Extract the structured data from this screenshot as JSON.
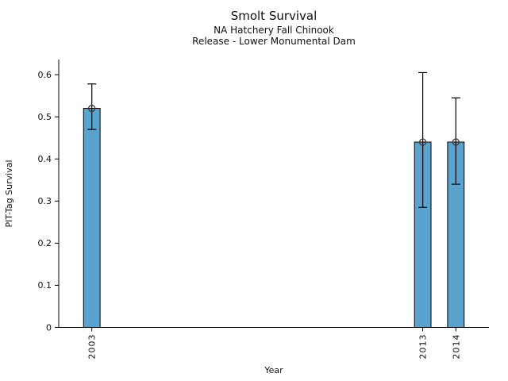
{
  "chart_data": {
    "type": "bar",
    "title": "Smolt Survival",
    "subtitle1": "NA Hatchery Fall Chinook",
    "subtitle2": "Release - Lower Monumental Dam",
    "xlabel": "Year",
    "ylabel": "PIT-Tag Survival",
    "categories": [
      2003,
      2013,
      2014
    ],
    "values": [
      0.52,
      0.44,
      0.44
    ],
    "error_low": [
      0.47,
      0.285,
      0.34
    ],
    "error_high": [
      0.578,
      0.605,
      0.545
    ],
    "xlim": [
      2002,
      2015
    ],
    "ylim": [
      0,
      0.636
    ],
    "y_ticks": [
      0,
      0.1,
      0.2,
      0.3,
      0.4,
      0.5,
      0.6
    ],
    "y_tick_labels": [
      "0",
      "0.1",
      "0.2",
      "0.3",
      "0.4",
      "0.5",
      "0.6"
    ],
    "x_tick_labels": [
      "2003",
      "2013",
      "2014"
    ],
    "bar_width_years": 0.5,
    "bar_color": "#5BA3CF",
    "bar_edge_color": "#000000",
    "error_color": "#000000",
    "marker": "open-circle",
    "marker_color": "#3a3a3a",
    "legend": "none",
    "grid": "off"
  }
}
